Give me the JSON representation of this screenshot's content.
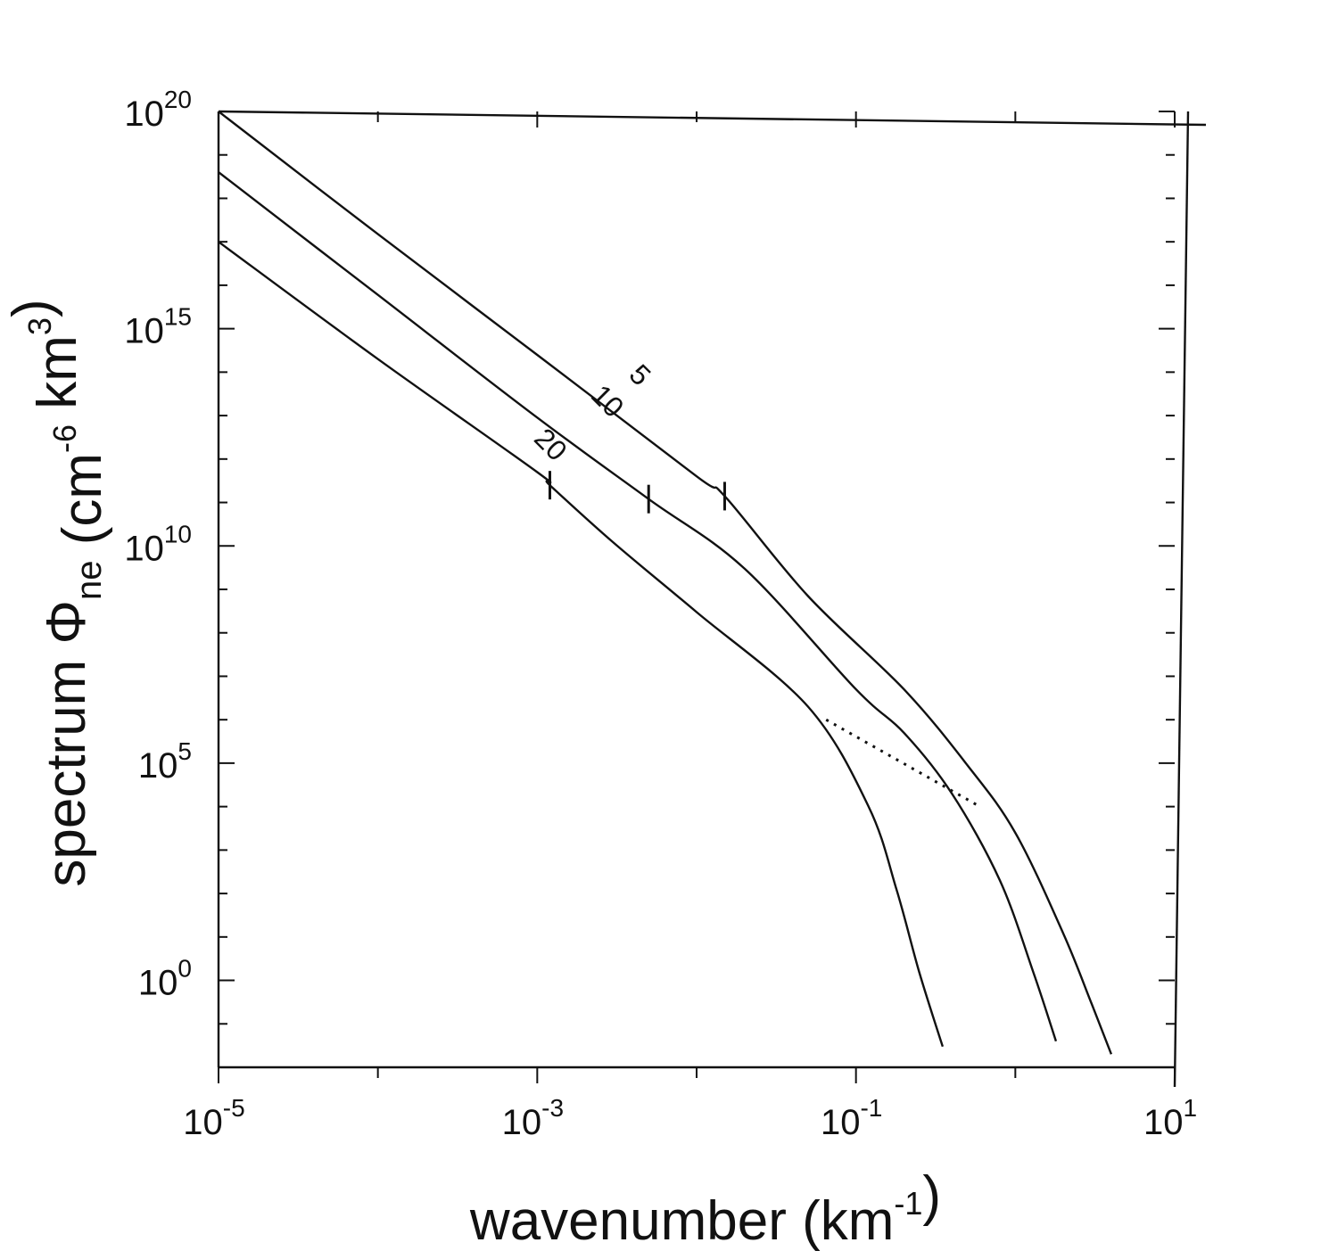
{
  "chart_data": {
    "type": "line",
    "title": "",
    "xlabel": "wavenumber (km-1)",
    "ylabel": "spectrum Φne (cm-6 km3)",
    "x_scale": "log",
    "y_scale": "log",
    "xlim": [
      1e-05,
      10
    ],
    "ylim": [
      0.01,
      1e+20
    ],
    "x_tick_labels": [
      {
        "base": "10",
        "exp": "-5",
        "value": 1e-05
      },
      {
        "base": "10",
        "exp": "-3",
        "value": 0.001
      },
      {
        "base": "10",
        "exp": "-1",
        "value": 0.1
      },
      {
        "base": "10",
        "exp": "1",
        "value": 10
      }
    ],
    "y_tick_labels": [
      {
        "base": "10",
        "exp": "0",
        "value": 1
      },
      {
        "base": "10",
        "exp": "5",
        "value": 100000.0
      },
      {
        "base": "10",
        "exp": "10",
        "value": 10000000000.0
      },
      {
        "base": "10",
        "exp": "15",
        "value": 1000000000000000.0
      },
      {
        "base": "10",
        "exp": "20",
        "value": 1e+20
      }
    ],
    "grid": false,
    "legend": "none",
    "series": [
      {
        "name": "5",
        "x": [
          1e-05,
          0.0001,
          0.001,
          0.01,
          0.015,
          0.05,
          0.2,
          0.5,
          1.0,
          2.0,
          3.0,
          4.0
        ],
        "y": [
          1e+20,
          1.5e+17,
          250000000000000.0,
          400000000000.0,
          140000000000.0,
          700000000.0,
          5000000.0,
          90000.0,
          2500,
          12,
          0.3,
          0.02
        ]
      },
      {
        "name": "10",
        "x": [
          1e-05,
          0.0001,
          0.001,
          0.005,
          0.02,
          0.1,
          0.2,
          0.4,
          0.8,
          1.3,
          1.8
        ],
        "y": [
          4e+18,
          6000000000000000.0,
          9000000000000.0,
          120000000000.0,
          3000000000.0,
          5000000.0,
          500000.0,
          20000.0,
          200,
          1.5,
          0.04
        ]
      },
      {
        "name": "20",
        "x": [
          1e-05,
          0.0001,
          0.001,
          0.0012,
          0.003,
          0.01,
          0.05,
          0.12,
          0.18,
          0.25,
          0.35
        ],
        "y": [
          1e+17,
          200000000000000.0,
          500000000000.0,
          250000000000.0,
          12000000000.0,
          300000000.0,
          2000000.0,
          10000.0,
          120,
          1.5,
          0.03
        ]
      }
    ],
    "dotted_segment": {
      "x": [
        0.065,
        0.6
      ],
      "y": [
        1000000.0,
        10000.0
      ]
    },
    "tick_marks_on_curves": [
      {
        "series": "5",
        "x": 0.015,
        "y": 140000000000.0
      },
      {
        "series": "10",
        "x": 0.005,
        "y": 120000000000.0
      },
      {
        "series": "20",
        "x": 0.0012,
        "y": 250000000000.0
      }
    ],
    "curve_labels": [
      {
        "text": "5",
        "x": 0.004,
        "y": 60000000000000.0
      },
      {
        "text": "10",
        "x": 0.0025,
        "y": 15000000000000.0
      },
      {
        "text": "20",
        "x": 0.0011,
        "y": 1500000000000.0
      }
    ]
  }
}
